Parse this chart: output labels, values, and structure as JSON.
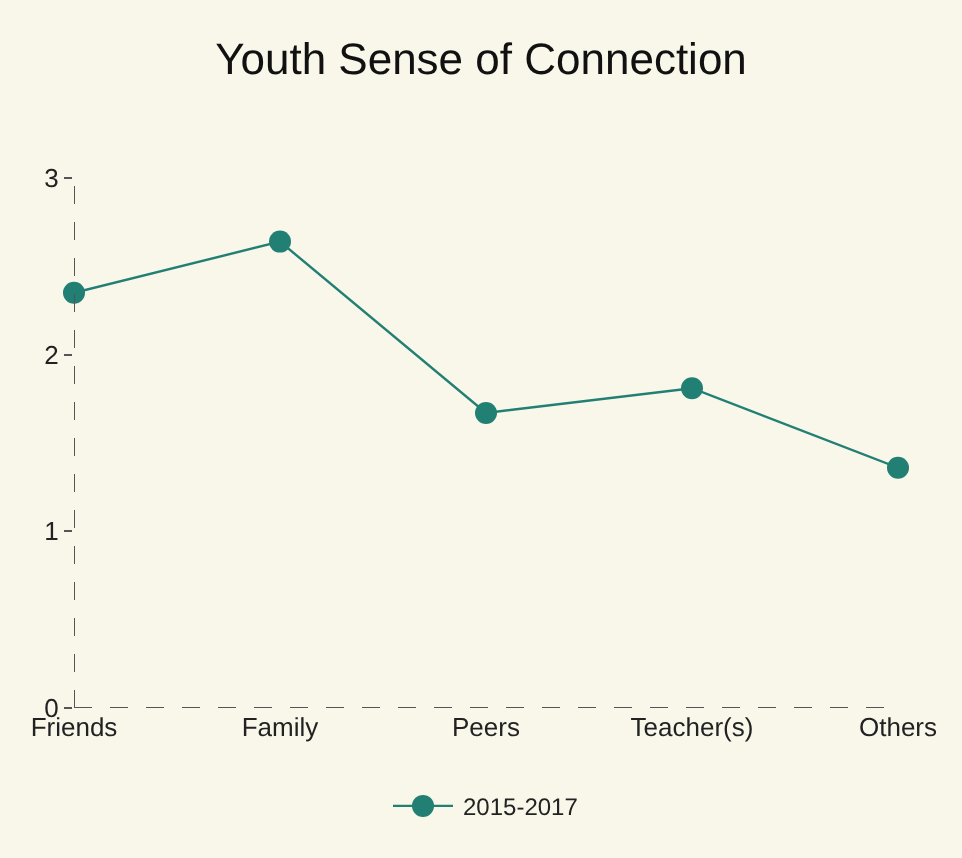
{
  "chart_data": {
    "type": "line",
    "title": "Youth Sense of Connection",
    "categories": [
      "Friends",
      "Family",
      "Peers",
      "Teacher(s)",
      "Others"
    ],
    "series": [
      {
        "name": "2015-2017",
        "color": "#217f73",
        "values": [
          2.35,
          2.64,
          1.67,
          1.81,
          1.36
        ]
      }
    ],
    "ylim": [
      0,
      3
    ],
    "yticks": [
      0,
      1,
      2,
      3
    ],
    "grid": false,
    "legend": "bottom",
    "marker": "circle",
    "line_style": "solid"
  }
}
